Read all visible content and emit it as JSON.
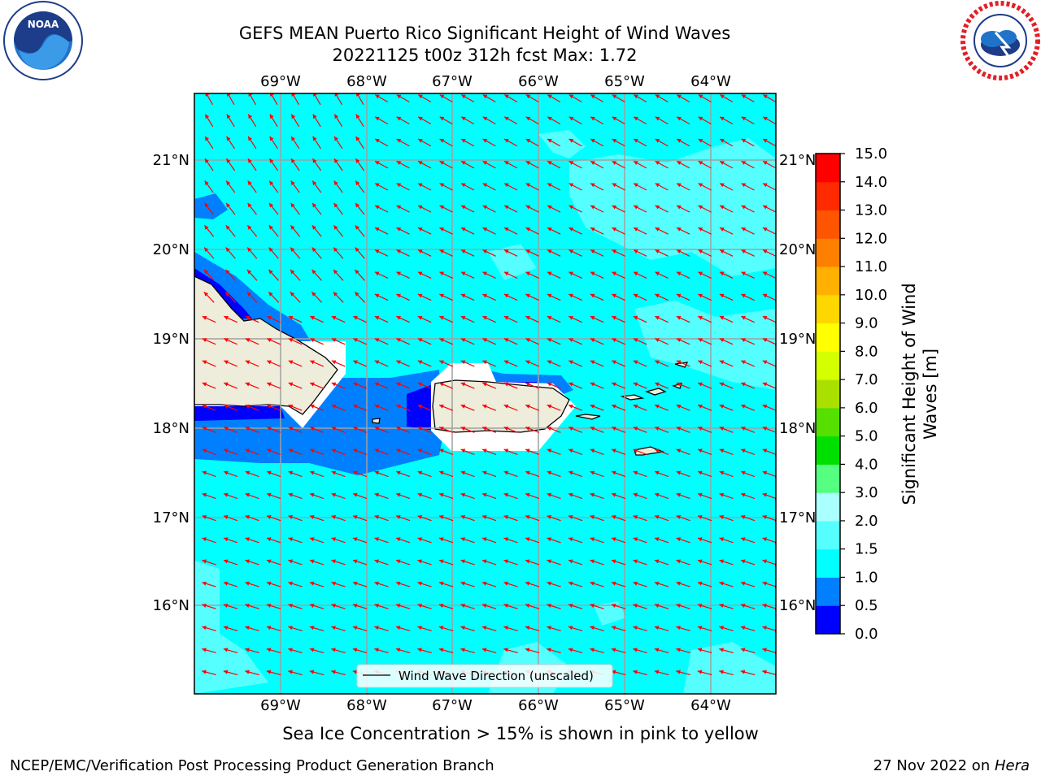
{
  "title": {
    "line1": "GEFS MEAN Puerto Rico Significant Height of Wind Waves",
    "line2": "20221125 t00z 312h fcst   Max: 1.72"
  },
  "caption": "Sea Ice Concentration > 15% is shown in pink to yellow",
  "footer": {
    "left": "NCEP/EMC/Verification Post Processing Product Generation Branch",
    "right_date": "27 Nov 2022 on ",
    "right_host": "Hera"
  },
  "logos": {
    "left": "noara-logo",
    "right": "national-weather-service-logo"
  },
  "map": {
    "lon_labels": [
      "69°W",
      "68°W",
      "67°W",
      "66°W",
      "65°W",
      "64°W"
    ],
    "lat_labels": [
      "21°N",
      "20°N",
      "19°N",
      "18°N",
      "17°N",
      "16°N"
    ],
    "legend_label": "Wind Wave Direction (unscaled)",
    "colors": {
      "sea_1_0_1_5": "#00ffff",
      "sea_1_5_2_0": "#55ffff",
      "sea_2_0_3_0": "#aaffff",
      "sea_0_5_1_0": "#0080ff",
      "sea_0_0_0_5": "#0000ff",
      "land": "#eeecdb",
      "arrow": "#ff0000"
    }
  },
  "colorbar": {
    "label": "Significant Height of Wind Waves [m]",
    "ticks": [
      "0.0",
      "0.5",
      "1.0",
      "1.5",
      "2.0",
      "3.0",
      "4.0",
      "5.0",
      "6.0",
      "7.0",
      "8.0",
      "9.0",
      "10.0",
      "11.0",
      "12.0",
      "13.0",
      "14.0",
      "15.0"
    ],
    "colors": [
      "#0000ff",
      "#0080ff",
      "#00ffff",
      "#55ffff",
      "#aaffff",
      "#55ff80",
      "#00e000",
      "#55e000",
      "#aae000",
      "#d4ff00",
      "#ffff00",
      "#ffd700",
      "#ffb000",
      "#ff8000",
      "#ff5500",
      "#ff2a00",
      "#ff0000"
    ]
  }
}
